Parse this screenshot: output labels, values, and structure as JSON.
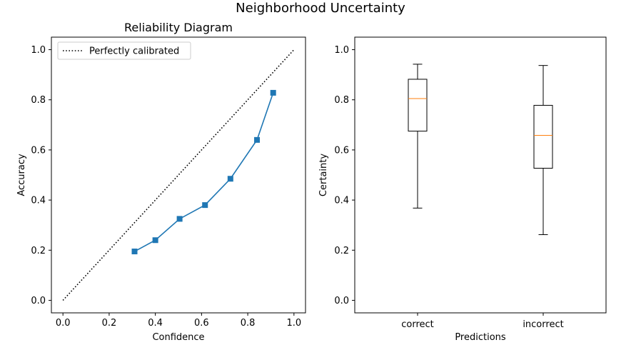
{
  "figure": {
    "suptitle": "Neighborhood Uncertainty"
  },
  "chart_data": [
    {
      "type": "line",
      "title": "Reliability Diagram",
      "xlabel": "Confidence",
      "ylabel": "Accuracy",
      "xlim": [
        -0.05,
        1.05
      ],
      "ylim": [
        -0.05,
        1.05
      ],
      "xticks": [
        "0.0",
        "0.2",
        "0.4",
        "0.6",
        "0.8",
        "1.0"
      ],
      "yticks": [
        "0.0",
        "0.2",
        "0.4",
        "0.6",
        "0.8",
        "1.0"
      ],
      "grid": false,
      "legend": {
        "placement": "upper-left",
        "entries": [
          "Perfectly calibrated"
        ]
      },
      "series": [
        {
          "name": "Perfectly calibrated",
          "style": "dotted",
          "color": "#000000",
          "x": [
            0.0,
            1.0
          ],
          "y": [
            0.0,
            1.0
          ]
        },
        {
          "style": "line-square-markers",
          "color": "#1f77b4",
          "x": [
            0.31,
            0.4,
            0.505,
            0.615,
            0.725,
            0.84,
            0.91
          ],
          "y": [
            0.195,
            0.24,
            0.325,
            0.38,
            0.485,
            0.64,
            0.828
          ]
        }
      ]
    },
    {
      "type": "box",
      "title": "",
      "xlabel": "Predictions",
      "ylabel": "Certainty",
      "ylim": [
        -0.05,
        1.05
      ],
      "yticks": [
        "0.0",
        "0.2",
        "0.4",
        "0.6",
        "0.8",
        "1.0"
      ],
      "grid": false,
      "categories": [
        "correct",
        "incorrect"
      ],
      "median_color": "#ff7f0e",
      "boxes": [
        {
          "category": "correct",
          "whisker_low": 0.368,
          "q1": 0.675,
          "median": 0.805,
          "q3": 0.882,
          "whisker_high": 0.942
        },
        {
          "category": "incorrect",
          "whisker_low": 0.262,
          "q1": 0.527,
          "median": 0.658,
          "q3": 0.778,
          "whisker_high": 0.937
        }
      ]
    }
  ]
}
